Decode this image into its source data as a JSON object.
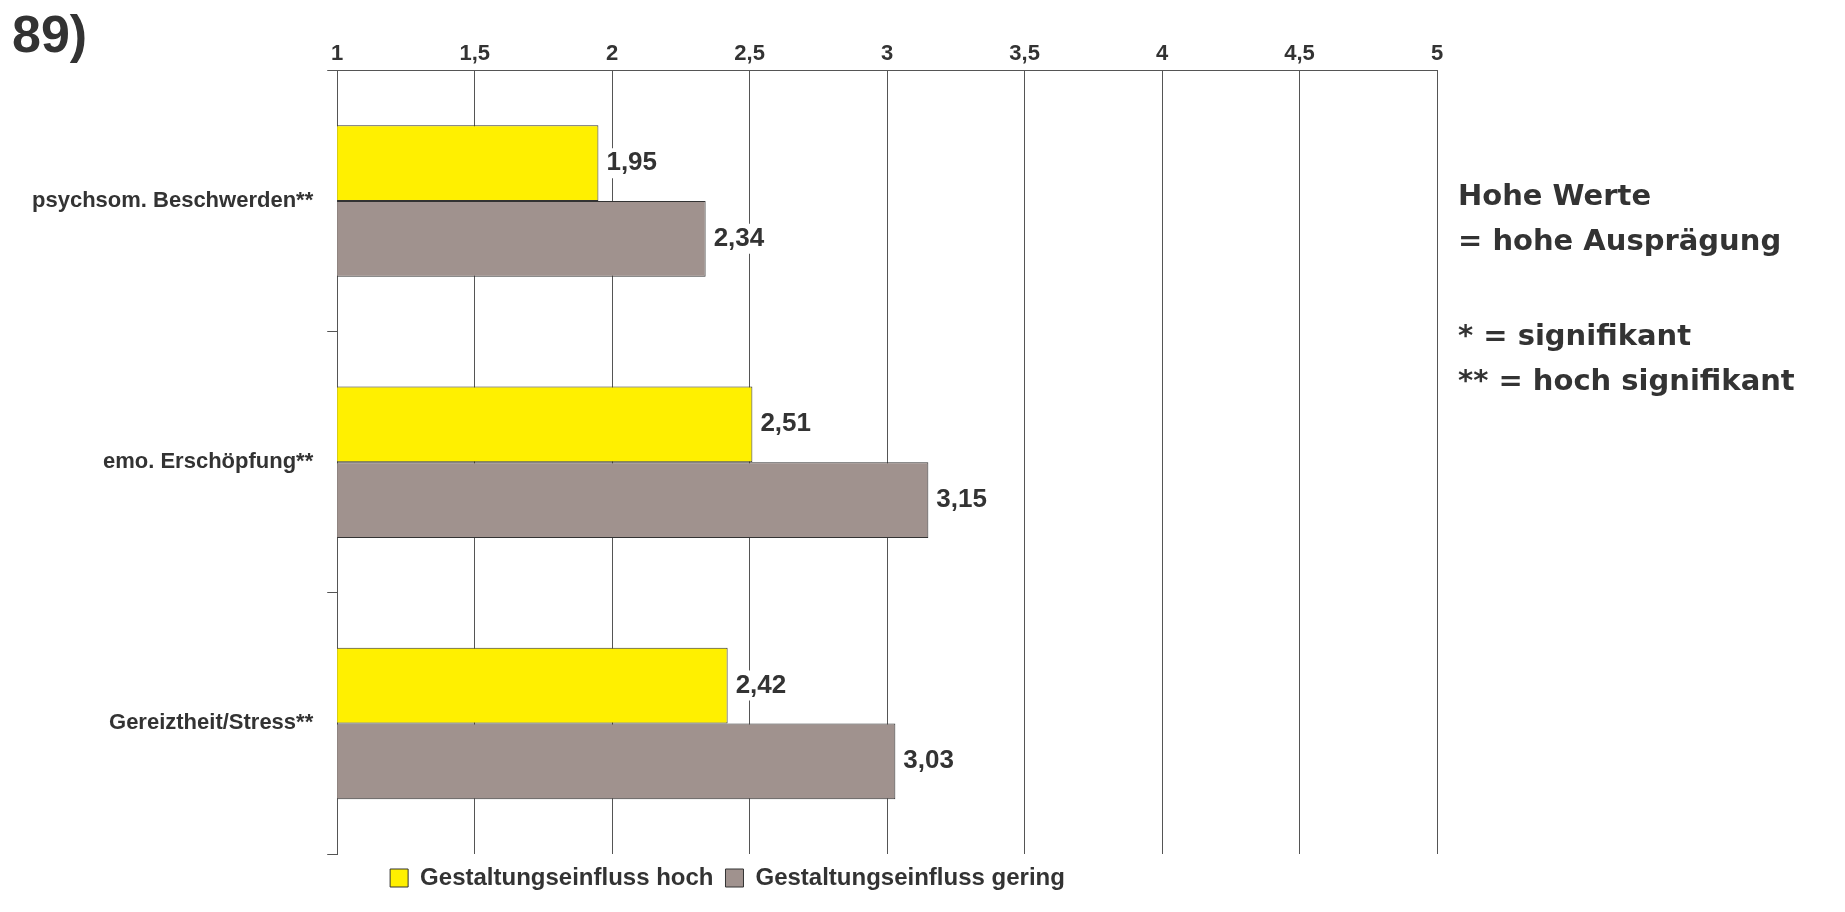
{
  "chart_data": {
    "type": "bar",
    "orientation": "horizontal",
    "title": "89)",
    "categories": [
      "psychsom. Beschwerden**",
      "emo. Erschöpfung**",
      "Gereiztheit/Stress**"
    ],
    "series": [
      {
        "name": "Gestaltungseinfluss hoch",
        "color": "#fff000",
        "values": [
          1.95,
          2.51,
          2.42
        ],
        "value_labels": [
          "1,95",
          "2,51",
          "2,42"
        ]
      },
      {
        "name": "Gestaltungseinfluss gering",
        "color": "#a0928e",
        "values": [
          2.34,
          3.15,
          3.03
        ],
        "value_labels": [
          "2,34",
          "3,15",
          "3,03"
        ]
      }
    ],
    "xlim": [
      1,
      5
    ],
    "xticks": [
      1,
      {
        "value": 1.5,
        "label": "1,5"
      },
      2,
      {
        "value": 2.5,
        "label": "2,5"
      },
      3,
      {
        "value": 3.5,
        "label": "3,5"
      },
      4,
      {
        "value": 4.5,
        "label": "4,5"
      },
      5
    ],
    "grid": "x",
    "legend": "bottom",
    "annotations": [
      "Hohe Werte\n= hohe Ausprägung",
      "* = signifikant\n** = hoch signifikant"
    ]
  }
}
